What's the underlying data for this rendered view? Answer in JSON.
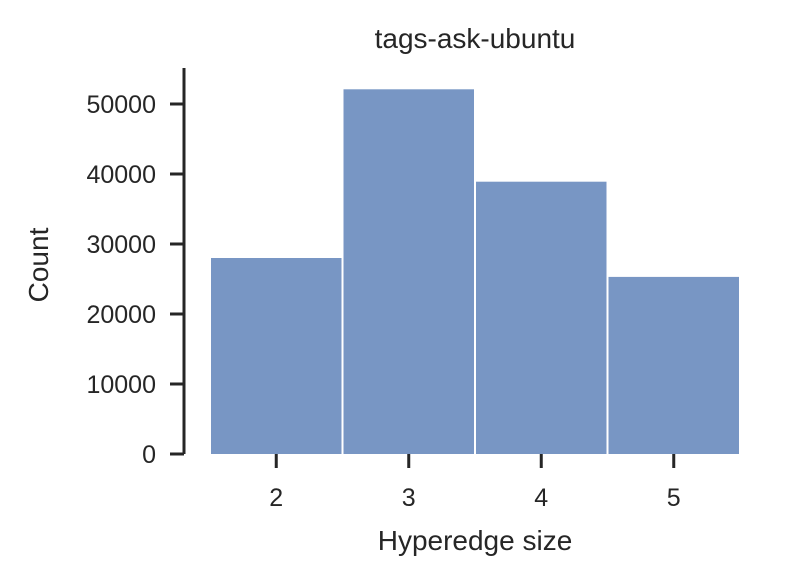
{
  "chart_data": {
    "type": "bar",
    "title": "tags-ask-ubuntu",
    "xlabel": "Hyperedge size",
    "ylabel": "Count",
    "categories": [
      "2",
      "3",
      "4",
      "5"
    ],
    "values": [
      28000,
      52100,
      38900,
      25300
    ],
    "ylim": [
      0,
      55000
    ],
    "yticks": [
      "0",
      "10000",
      "20000",
      "30000",
      "40000",
      "50000"
    ],
    "grid": false,
    "legend": "none",
    "colors": {
      "bar": "#7896c4",
      "axis": "#262626",
      "text": "#262626",
      "background": "#ffffff"
    }
  }
}
